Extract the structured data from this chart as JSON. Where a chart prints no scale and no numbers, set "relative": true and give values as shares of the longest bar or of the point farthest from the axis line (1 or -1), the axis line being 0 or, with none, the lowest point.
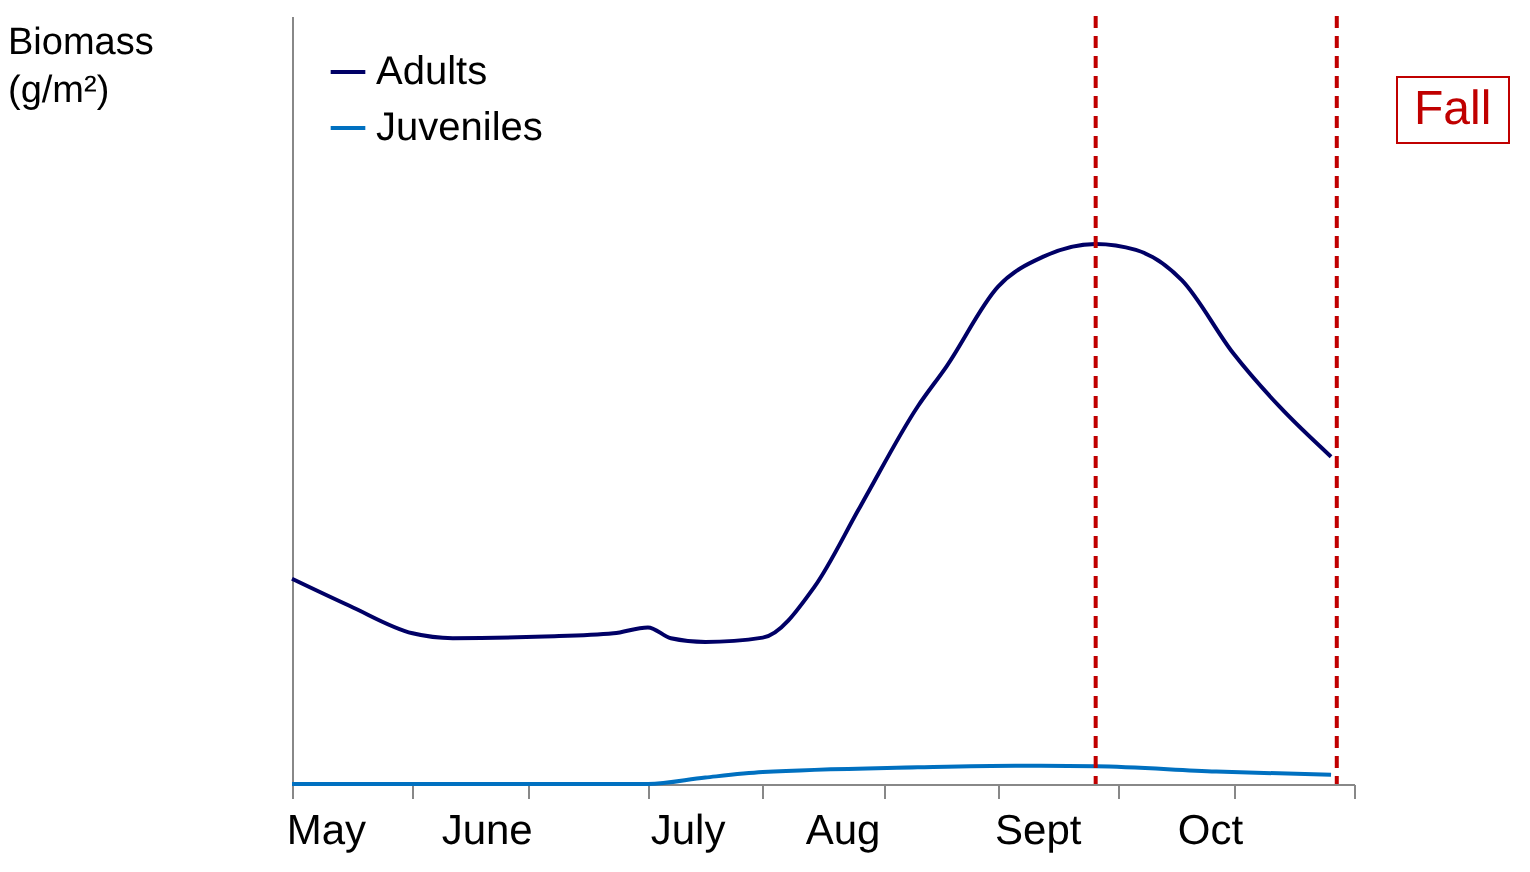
{
  "chart_data": {
    "type": "line",
    "ylabel": "Biomass (g/m²)",
    "relative": true,
    "legend": "top left",
    "grid": false,
    "marker": "none",
    "line_style": "solid",
    "xlim": [
      "--05-08",
      "--11-09"
    ],
    "xticks": [
      {
        "value": "--05-08",
        "label": null
      },
      {
        "value": "--05-29",
        "label": null
      },
      {
        "value": "--06-18",
        "label": null
      },
      {
        "value": "--07-09",
        "label": null
      },
      {
        "value": "--07-29",
        "label": null
      },
      {
        "value": "--08-19",
        "label": null
      },
      {
        "value": "--09-08",
        "label": null
      },
      {
        "value": "--09-29",
        "label": null
      },
      {
        "value": "--10-19",
        "label": null
      },
      {
        "value": "--11-09",
        "label": null
      },
      {
        "value": "--05-14",
        "label": "May"
      },
      {
        "value": "--06-11",
        "label": "June"
      },
      {
        "value": "--07-16",
        "label": "July"
      },
      {
        "value": "--08-12",
        "label": "Aug"
      },
      {
        "value": "--09-15",
        "label": "Sept"
      },
      {
        "value": "--10-15",
        "label": "Oct"
      }
    ],
    "series": [
      {
        "name": "Adults",
        "color": "#000066",
        "x": [
          "--05-08",
          "--05-18",
          "--05-29",
          "--06-05",
          "--06-21",
          "--07-03",
          "--07-09",
          "--07-13",
          "--07-19",
          "--07-29",
          "--08-07",
          "--08-15",
          "--08-25",
          "--08-30",
          "--09-08",
          "--09-16",
          "--09-25",
          "--10-02",
          "--10-10",
          "--10-19",
          "--10-27",
          "--11-05"
        ],
        "values": [
          0.38,
          0.33,
          0.279,
          0.27,
          0.273,
          0.279,
          0.29,
          0.27,
          0.263,
          0.271,
          0.365,
          0.514,
          0.699,
          0.773,
          0.921,
          0.977,
          1.0,
          0.989,
          0.933,
          0.797,
          0.699,
          0.606
        ]
      },
      {
        "name": "Juveniles",
        "color": "#0070c0",
        "x": [
          "--05-08",
          "--05-29",
          "--06-18",
          "--07-09",
          "--07-19",
          "--07-29",
          "--08-25",
          "--09-11",
          "--09-25",
          "--10-16",
          "--11-05"
        ],
        "values": [
          0,
          0,
          0,
          0,
          0.012,
          0.022,
          0.031,
          0.034,
          0.033,
          0.023,
          0.017
        ]
      }
    ],
    "ref_lines": [
      {
        "axis": "x",
        "value": "--09-25",
        "color": "#c00000",
        "line_style": "dashed"
      },
      {
        "axis": "x",
        "value": "--11-06",
        "color": "#c00000",
        "line_style": "dashed"
      }
    ],
    "annotations": [
      "Fall"
    ]
  }
}
